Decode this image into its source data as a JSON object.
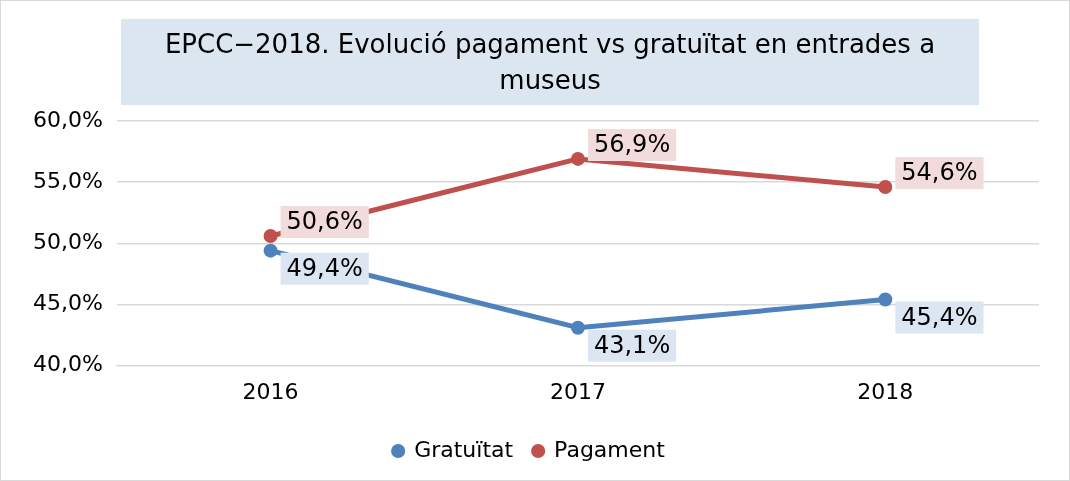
{
  "chart_data": {
    "type": "line",
    "title": "EPCC−2018. Evolució pagament vs gratuïtat en entrades a museus",
    "categories": [
      "2016",
      "2017",
      "2018"
    ],
    "series": [
      {
        "name": "Gratuïtat",
        "color": "#4f81bd",
        "values": [
          49.4,
          43.1,
          45.4
        ],
        "value_labels": [
          "49,4%",
          "43,1%",
          "45,4%"
        ]
      },
      {
        "name": "Pagament",
        "color": "#c0504d",
        "values": [
          50.6,
          56.9,
          54.6
        ],
        "value_labels": [
          "50,6%",
          "56,9%",
          "54,6%"
        ]
      }
    ],
    "ylim": [
      40,
      60
    ],
    "yticks": [
      {
        "value": 40,
        "label": "40,0%"
      },
      {
        "value": 45,
        "label": "45,0%"
      },
      {
        "value": 50,
        "label": "50,0%"
      },
      {
        "value": 55,
        "label": "55,0%"
      },
      {
        "value": 60,
        "label": "60,0%"
      }
    ],
    "grid": "y",
    "legend": "bottom",
    "marker": "circle",
    "line_style": "solid"
  }
}
